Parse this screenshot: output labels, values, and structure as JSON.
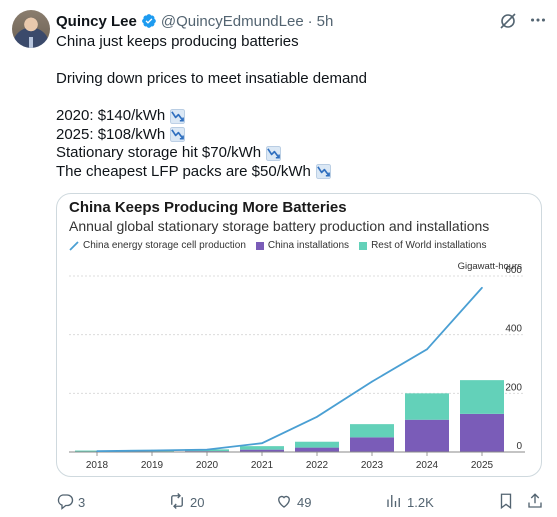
{
  "author": {
    "name": "Quincy Lee",
    "handle": "@QuincyEdmundLee",
    "separator": "·",
    "time": "5h"
  },
  "tweet": {
    "lines": [
      "China just keeps producing batteries",
      "",
      "Driving down prices to meet insatiable demand",
      "",
      "2020: $140/kWh",
      "2025: $108/kWh",
      "Stationary storage hit $70/kWh",
      "The cheapest LFP packs are $50/kWh"
    ],
    "emoji_lines": [
      4,
      5,
      6,
      7
    ],
    "emoji_icon": "chart-decreasing-icon"
  },
  "icons": {
    "verified": "verified-badge-icon",
    "grok": "grok-icon",
    "more": "more-icon",
    "reply": "reply-icon",
    "repost": "repost-icon",
    "like": "like-icon",
    "views": "views-icon",
    "bookmark": "bookmark-icon",
    "share": "share-icon"
  },
  "colors": {
    "verified": "#1d9bf0",
    "line_series": "#4a9fd3",
    "china_bar": "#7a5cb8",
    "row_bar": "#63d1b9"
  },
  "chart_data": {
    "type": "bar",
    "title": "China Keeps Producing More Batteries",
    "subtitle": "Annual global stationary storage battery production and installations",
    "unit_label": "Gigawatt-hours",
    "categories": [
      "2018",
      "2019",
      "2020",
      "2021",
      "2022",
      "2023",
      "2024",
      "2025"
    ],
    "ylim": [
      0,
      600
    ],
    "yticks": [
      "600",
      "400",
      "200",
      "0"
    ],
    "ytick_values": [
      600,
      400,
      200,
      0
    ],
    "grid": true,
    "legend_position": "top",
    "series": [
      {
        "name": "China energy storage cell production",
        "kind": "line",
        "values": [
          3,
          5,
          8,
          30,
          120,
          240,
          350,
          560
        ]
      },
      {
        "name": "China installations",
        "kind": "bar",
        "values": [
          1,
          2,
          3,
          8,
          15,
          50,
          110,
          130
        ]
      },
      {
        "name": "Rest of World installations",
        "kind": "bar",
        "values": [
          4,
          5,
          6,
          12,
          20,
          45,
          90,
          115
        ]
      }
    ]
  },
  "engagement": {
    "replies": "3",
    "reposts": "20",
    "likes": "49",
    "views": "1.2K"
  }
}
